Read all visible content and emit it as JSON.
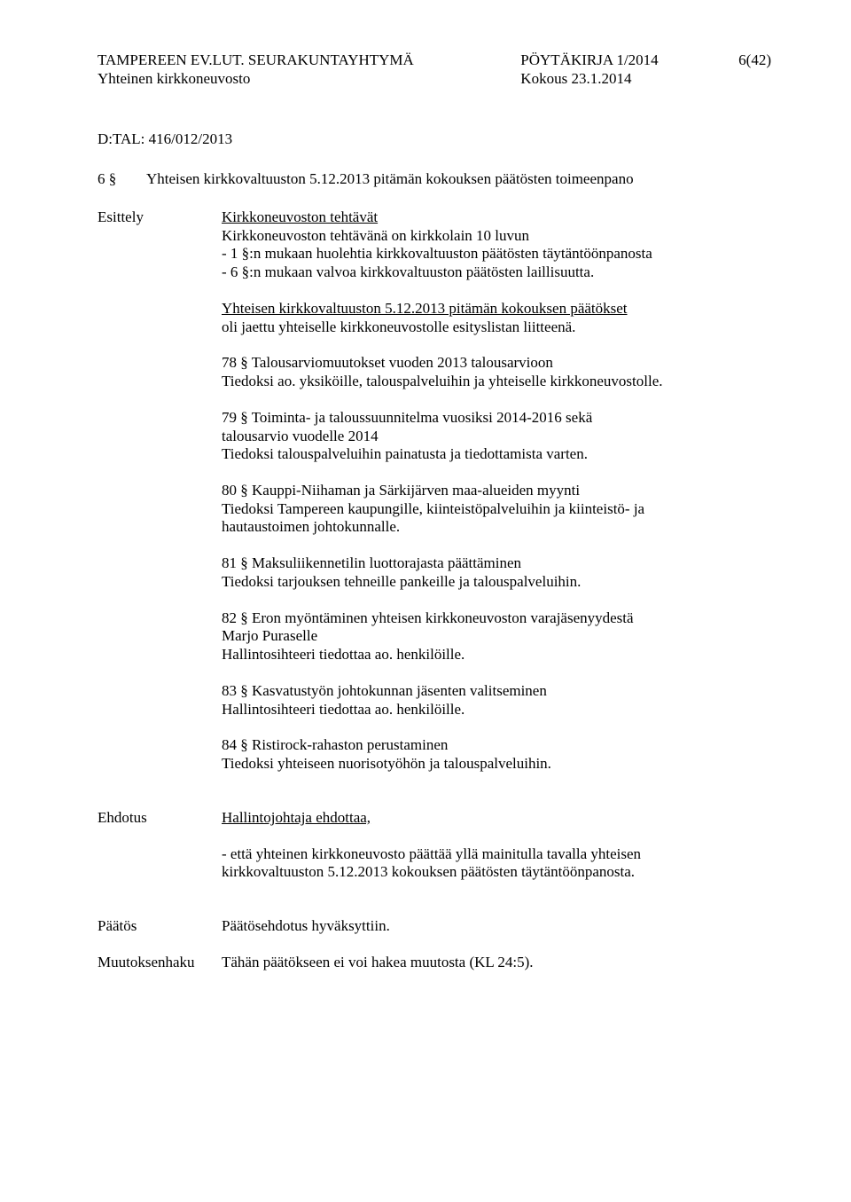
{
  "header": {
    "org": "TAMPEREEN EV.LUT. SEURAKUNTAYHTYMÄ",
    "sub": "Yhteinen kirkkoneuvosto",
    "doc": "PÖYTÄKIRJA 1/2014",
    "meeting": "Kokous 23.1.2014",
    "page": "6(42)"
  },
  "dref": "D:TAL: 416/012/2013",
  "section6": {
    "num": "6 §",
    "title": "Yhteisen kirkkovaltuuston 5.12.2013 pitämän kokouksen päätösten toimeenpano"
  },
  "esittely": {
    "label": "Esittely",
    "heading": "Kirkkoneuvoston tehtävät",
    "intro_l1": "Kirkkoneuvoston tehtävänä on kirkkolain 10 luvun",
    "intro_l2": "- 1 §:n mukaan huolehtia kirkkovaltuuston päätösten täytäntöönpanosta",
    "intro_l3": "- 6 §:n mukaan valvoa kirkkovaltuuston päätösten laillisuutta.",
    "attach_u": "Yhteisen kirkkovaltuuston 5.12.2013 pitämän kokouksen päätökset",
    "attach_rest": "oli jaettu yhteiselle kirkkoneuvostolle esityslistan liitteenä.",
    "p78_l1": "78 § Talousarviomuutokset vuoden 2013 talousarvioon",
    "p78_l2": "Tiedoksi ao. yksiköille, talouspalveluihin ja yhteiselle kirkkoneuvostolle.",
    "p79_l1": "79 § Toiminta- ja taloussuunnitelma vuosiksi 2014-2016 sekä",
    "p79_l2": "talousarvio vuodelle 2014",
    "p79_l3": "Tiedoksi talouspalveluihin painatusta ja tiedottamista varten.",
    "p80_l1": "80 § Kauppi-Niihaman ja Särkijärven maa-alueiden myynti",
    "p80_l2": "Tiedoksi Tampereen kaupungille, kiinteistöpalveluihin ja kiinteistö- ja",
    "p80_l3": "hautaustoimen johtokunnalle.",
    "p81_l1": "81 § Maksuliikennetilin luottorajasta päättäminen",
    "p81_l2": "Tiedoksi tarjouksen tehneille pankeille ja talouspalveluihin.",
    "p82_l1": "82 § Eron myöntäminen yhteisen kirkkoneuvoston varajäsenyydestä",
    "p82_l2": "Marjo Puraselle",
    "p82_l3": "Hallintosihteeri tiedottaa ao. henkilöille.",
    "p83_l1": "83 § Kasvatustyön johtokunnan jäsenten valitseminen",
    "p83_l2": "Hallintosihteeri tiedottaa ao. henkilöille.",
    "p84_l1": "84 § Ristirock-rahaston perustaminen",
    "p84_l2": "Tiedoksi yhteiseen nuorisotyöhön ja talouspalveluihin."
  },
  "ehdotus": {
    "label": "Ehdotus",
    "heading": "Hallintojohtaja ehdottaa,",
    "body_l1": "- että yhteinen kirkkoneuvosto päättää yllä mainitulla tavalla yhteisen",
    "body_l2": "kirkkovaltuuston 5.12.2013 kokouksen päätösten täytäntöönpanosta."
  },
  "paatos": {
    "label": "Päätös",
    "text": "Päätösehdotus hyväksyttiin."
  },
  "muutoksenhaku": {
    "label": "Muutoksenhaku",
    "text": "Tähän päätökseen ei voi hakea muutosta (KL 24:5)."
  }
}
